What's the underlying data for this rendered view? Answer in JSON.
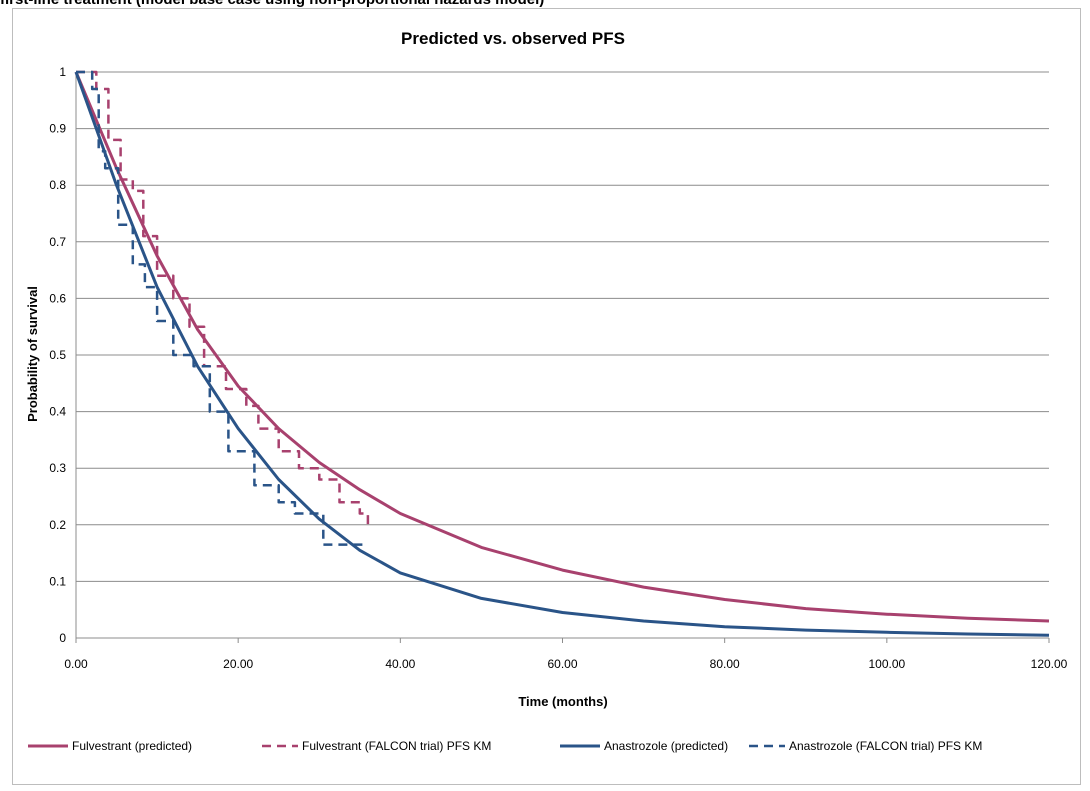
{
  "caption": "first-line treatment (model base case using non-proportional hazards model)",
  "chart_data": {
    "type": "line",
    "title": "Predicted vs. observed PFS",
    "xlabel": "Time (months)",
    "ylabel": "Probability of survival",
    "xlim": [
      0,
      120
    ],
    "ylim": [
      0,
      1
    ],
    "x_ticks": [
      "0.00",
      "20.00",
      "40.00",
      "60.00",
      "80.00",
      "100.00",
      "120.00"
    ],
    "y_ticks": [
      "0",
      "0.1",
      "0.2",
      "0.3",
      "0.4",
      "0.5",
      "0.6",
      "0.7",
      "0.8",
      "0.9",
      "1"
    ],
    "grid": true,
    "legend_position": "bottom",
    "series": [
      {
        "name": "Fulvestrant (predicted)",
        "color": "#a8416e",
        "style": "solid",
        "points": [
          [
            0,
            1.0
          ],
          [
            5,
            0.83
          ],
          [
            10,
            0.675
          ],
          [
            15,
            0.545
          ],
          [
            20,
            0.445
          ],
          [
            25,
            0.37
          ],
          [
            30,
            0.31
          ],
          [
            35,
            0.262
          ],
          [
            40,
            0.22
          ],
          [
            50,
            0.16
          ],
          [
            60,
            0.12
          ],
          [
            70,
            0.09
          ],
          [
            80,
            0.068
          ],
          [
            90,
            0.052
          ],
          [
            100,
            0.042
          ],
          [
            110,
            0.035
          ],
          [
            120,
            0.03
          ]
        ]
      },
      {
        "name": "Fulvestrant (FALCON trial) PFS KM",
        "color": "#a8416e",
        "style": "dashed",
        "points": [
          [
            0,
            1.0
          ],
          [
            2.5,
            1.0
          ],
          [
            2.5,
            0.97
          ],
          [
            4,
            0.97
          ],
          [
            4,
            0.88
          ],
          [
            5.5,
            0.88
          ],
          [
            5.5,
            0.81
          ],
          [
            7,
            0.81
          ],
          [
            7,
            0.79
          ],
          [
            8.3,
            0.79
          ],
          [
            8.3,
            0.71
          ],
          [
            10,
            0.71
          ],
          [
            10,
            0.64
          ],
          [
            12,
            0.64
          ],
          [
            12,
            0.6
          ],
          [
            14,
            0.6
          ],
          [
            14,
            0.55
          ],
          [
            15.8,
            0.55
          ],
          [
            15.8,
            0.48
          ],
          [
            18.5,
            0.48
          ],
          [
            18.5,
            0.44
          ],
          [
            21,
            0.44
          ],
          [
            21,
            0.41
          ],
          [
            22.5,
            0.41
          ],
          [
            22.5,
            0.37
          ],
          [
            25,
            0.37
          ],
          [
            25,
            0.33
          ],
          [
            27.5,
            0.33
          ],
          [
            27.5,
            0.3
          ],
          [
            30,
            0.3
          ],
          [
            30,
            0.28
          ],
          [
            32.5,
            0.28
          ],
          [
            32.5,
            0.24
          ],
          [
            35,
            0.24
          ],
          [
            35,
            0.22
          ],
          [
            36,
            0.22
          ],
          [
            36,
            0.2
          ]
        ]
      },
      {
        "name": "Anastrozole (predicted)",
        "color": "#2a5488",
        "style": "solid",
        "points": [
          [
            0,
            1.0
          ],
          [
            5,
            0.8
          ],
          [
            10,
            0.62
          ],
          [
            15,
            0.48
          ],
          [
            20,
            0.37
          ],
          [
            25,
            0.28
          ],
          [
            30,
            0.21
          ],
          [
            35,
            0.155
          ],
          [
            40,
            0.115
          ],
          [
            50,
            0.07
          ],
          [
            60,
            0.045
          ],
          [
            70,
            0.03
          ],
          [
            80,
            0.02
          ],
          [
            90,
            0.014
          ],
          [
            100,
            0.01
          ],
          [
            110,
            0.007
          ],
          [
            120,
            0.005
          ]
        ]
      },
      {
        "name": "Anastrozole (FALCON trial) PFS KM",
        "color": "#2a5488",
        "style": "dashed",
        "points": [
          [
            0,
            1.0
          ],
          [
            2,
            1.0
          ],
          [
            2,
            0.97
          ],
          [
            2.8,
            0.97
          ],
          [
            2.8,
            0.86
          ],
          [
            3.6,
            0.86
          ],
          [
            3.6,
            0.83
          ],
          [
            5.2,
            0.83
          ],
          [
            5.2,
            0.73
          ],
          [
            7,
            0.73
          ],
          [
            7,
            0.66
          ],
          [
            8.5,
            0.66
          ],
          [
            8.5,
            0.62
          ],
          [
            10,
            0.62
          ],
          [
            10,
            0.56
          ],
          [
            12,
            0.56
          ],
          [
            12,
            0.5
          ],
          [
            14.5,
            0.5
          ],
          [
            14.5,
            0.48
          ],
          [
            16.5,
            0.48
          ],
          [
            16.5,
            0.4
          ],
          [
            18.8,
            0.4
          ],
          [
            18.8,
            0.33
          ],
          [
            22,
            0.33
          ],
          [
            22,
            0.27
          ],
          [
            25,
            0.27
          ],
          [
            25,
            0.24
          ],
          [
            27,
            0.24
          ],
          [
            27,
            0.22
          ],
          [
            30.5,
            0.22
          ],
          [
            30.5,
            0.165
          ],
          [
            36,
            0.165
          ]
        ]
      }
    ]
  }
}
